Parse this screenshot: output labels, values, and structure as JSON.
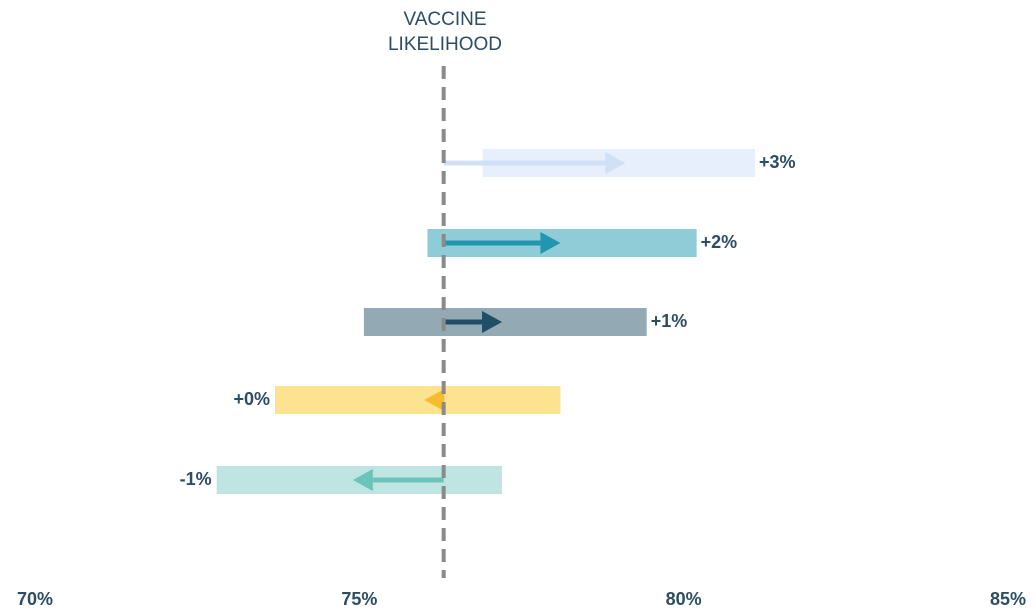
{
  "chart_data": {
    "type": "range_arrow",
    "baseline_label": [
      "VACCINE",
      "LIKELIHOOD"
    ],
    "baseline": 76.3,
    "xlim": [
      70,
      85
    ],
    "xticks": [
      {
        "value": 70,
        "label": "70%"
      },
      {
        "value": 75,
        "label": "75%"
      },
      {
        "value": 80,
        "label": "80%"
      },
      {
        "value": 85,
        "label": "85%"
      }
    ],
    "rows": [
      {
        "low": 76.9,
        "high": 81.1,
        "change": 2.8,
        "value_label": "+3%",
        "bar_color": "#e6effb",
        "arrow_color": "#cfe0f7"
      },
      {
        "low": 76.05,
        "high": 80.2,
        "change": 1.8,
        "value_label": "+2%",
        "bar_color": "#8fccd8",
        "arrow_color": "#2196ae"
      },
      {
        "low": 75.07,
        "high": 79.43,
        "change": 0.9,
        "value_label": "+1%",
        "bar_color": "#93a9b4",
        "arrow_color": "#1f4e66"
      },
      {
        "low": 73.7,
        "high": 78.1,
        "change": -0.3,
        "value_label": "+0%",
        "bar_color": "#fde290",
        "arrow_color": "#f6bc2a"
      },
      {
        "low": 72.8,
        "high": 77.2,
        "change": -1.4,
        "value_label": "-1%",
        "bar_color": "#bfe5e2",
        "arrow_color": "#6cc3bc"
      }
    ]
  }
}
